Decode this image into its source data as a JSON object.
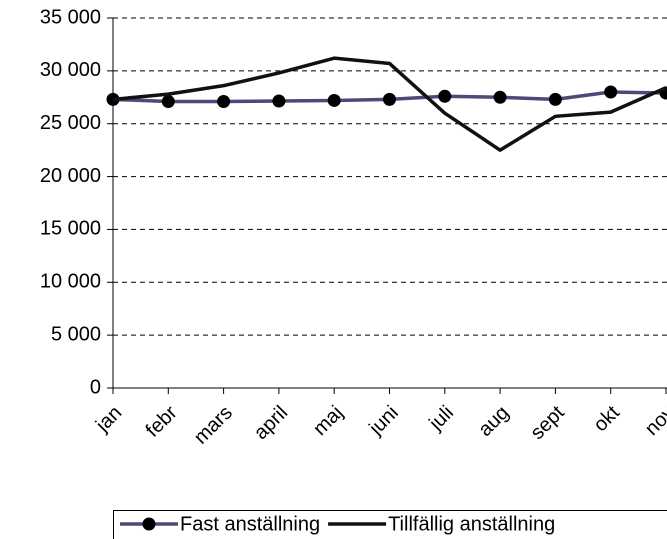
{
  "chart_data": {
    "type": "line",
    "categories": [
      "jan",
      "febr",
      "mars",
      "april",
      "maj",
      "juni",
      "juli",
      "aug",
      "sept",
      "okt",
      "nov"
    ],
    "series": [
      {
        "name": "Fast anställning",
        "color": "#4b4a7a",
        "marker": "circle",
        "values": [
          27300,
          27100,
          27100,
          27150,
          27200,
          27300,
          27600,
          27500,
          27300,
          28000,
          27900
        ]
      },
      {
        "name": "Tillfällig anställning",
        "color": "#111111",
        "values": [
          27300,
          27800,
          28600,
          29800,
          31200,
          30700,
          26000,
          22500,
          25700,
          26100,
          28400
        ]
      }
    ],
    "ylim": [
      0,
      35000
    ],
    "yticks": [
      0,
      {
        "value": 5000,
        "label": "5 000"
      },
      {
        "value": 10000,
        "label": "10 000"
      },
      {
        "value": 15000,
        "label": "15 000"
      },
      {
        "value": 20000,
        "label": "20 000"
      },
      {
        "value": 25000,
        "label": "25 000"
      },
      {
        "value": 30000,
        "label": "30 000"
      },
      {
        "value": 35000,
        "label": "35 000"
      }
    ],
    "grid": true,
    "legend": "bottom"
  }
}
